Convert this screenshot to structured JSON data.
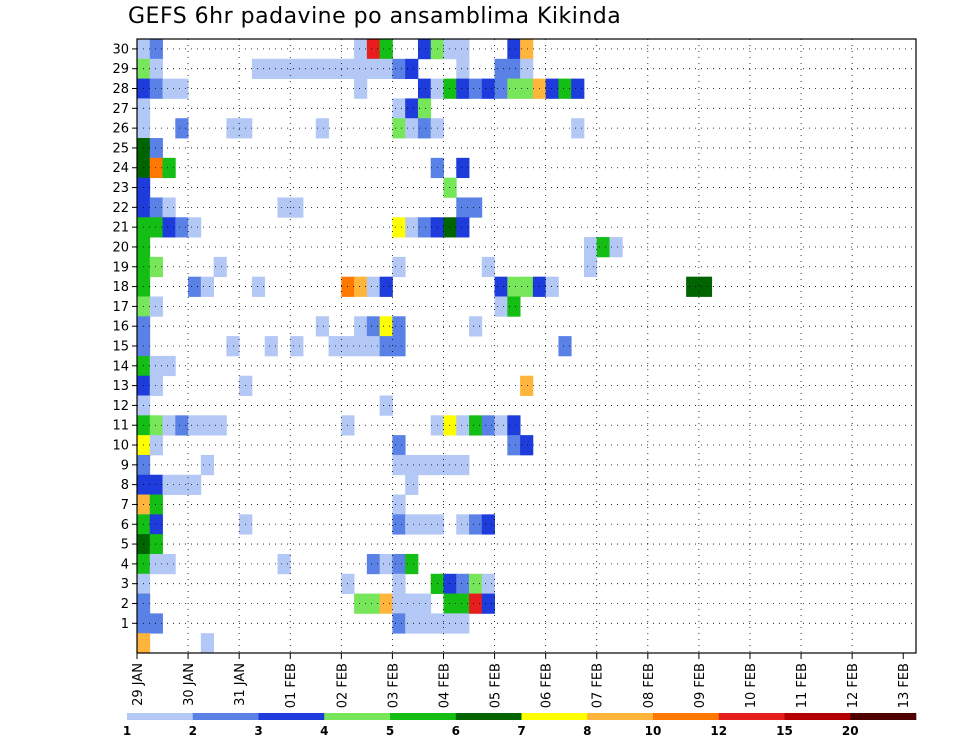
{
  "chart_data": {
    "type": "heatmap",
    "title": "GEFS 6hr padavine po ansamblima Kikinda",
    "xlabel": "",
    "ylabel": "",
    "y_members": [
      "1",
      "2",
      "3",
      "4",
      "5",
      "6",
      "7",
      "8",
      "9",
      "10",
      "11",
      "12",
      "13",
      "14",
      "15",
      "16",
      "17",
      "18",
      "19",
      "20",
      "21",
      "22",
      "23",
      "24",
      "25",
      "26",
      "27",
      "28",
      "29",
      "30"
    ],
    "x_dates": [
      "29 JAN",
      "30 JAN",
      "31 JAN",
      "01 FEB",
      "02 FEB",
      "03 FEB",
      "04 FEB",
      "05 FEB",
      "06 FEB",
      "07 FEB",
      "08 FEB",
      "09 FEB",
      "10 FEB",
      "11 FEB",
      "12 FEB",
      "13 FEB"
    ],
    "time_steps": 61,
    "steps_per_day": 4,
    "legend": {
      "labels": [
        "1",
        "2",
        "3",
        "4",
        "5",
        "6",
        "7",
        "8",
        "10",
        "12",
        "15",
        "20"
      ],
      "colors": [
        "#b4c8f5",
        "#5a82e6",
        "#1e3cdc",
        "#78e65a",
        "#14be14",
        "#006400",
        "#ffff00",
        "#ffb43c",
        "#ff7800",
        "#e61e1e",
        "#b40000",
        "#500000"
      ]
    },
    "cells": [
      [
        30,
        0,
        1
      ],
      [
        30,
        1,
        2
      ],
      [
        30,
        17,
        1
      ],
      [
        30,
        18,
        10
      ],
      [
        30,
        19,
        5
      ],
      [
        30,
        22,
        3
      ],
      [
        30,
        23,
        4
      ],
      [
        30,
        24,
        1
      ],
      [
        30,
        25,
        1
      ],
      [
        30,
        29,
        3
      ],
      [
        30,
        30,
        8
      ],
      [
        29,
        0,
        4
      ],
      [
        29,
        1,
        1
      ],
      [
        29,
        9,
        1
      ],
      [
        29,
        10,
        1
      ],
      [
        29,
        11,
        1
      ],
      [
        29,
        12,
        1
      ],
      [
        29,
        13,
        1
      ],
      [
        29,
        14,
        1
      ],
      [
        29,
        15,
        1
      ],
      [
        29,
        16,
        1
      ],
      [
        29,
        17,
        1
      ],
      [
        29,
        18,
        1
      ],
      [
        29,
        19,
        1
      ],
      [
        29,
        20,
        2
      ],
      [
        29,
        21,
        3
      ],
      [
        29,
        25,
        1
      ],
      [
        29,
        28,
        2
      ],
      [
        29,
        29,
        2
      ],
      [
        29,
        30,
        1
      ],
      [
        28,
        0,
        3
      ],
      [
        28,
        1,
        2
      ],
      [
        28,
        2,
        1
      ],
      [
        28,
        3,
        1
      ],
      [
        28,
        17,
        1
      ],
      [
        28,
        22,
        3
      ],
      [
        28,
        23,
        1
      ],
      [
        28,
        24,
        5
      ],
      [
        28,
        25,
        3
      ],
      [
        28,
        26,
        2
      ],
      [
        28,
        27,
        3
      ],
      [
        28,
        28,
        2
      ],
      [
        28,
        29,
        4
      ],
      [
        28,
        30,
        4
      ],
      [
        28,
        31,
        8
      ],
      [
        28,
        32,
        3
      ],
      [
        28,
        33,
        5
      ],
      [
        28,
        34,
        3
      ],
      [
        27,
        0,
        1
      ],
      [
        27,
        20,
        1
      ],
      [
        27,
        21,
        3
      ],
      [
        27,
        22,
        4
      ],
      [
        26,
        0,
        1
      ],
      [
        26,
        3,
        2
      ],
      [
        26,
        7,
        1
      ],
      [
        26,
        8,
        1
      ],
      [
        26,
        14,
        1
      ],
      [
        26,
        20,
        4
      ],
      [
        26,
        21,
        1
      ],
      [
        26,
        22,
        2
      ],
      [
        26,
        23,
        1
      ],
      [
        26,
        34,
        1
      ],
      [
        25,
        0,
        6
      ],
      [
        25,
        1,
        2
      ],
      [
        24,
        0,
        6
      ],
      [
        24,
        1,
        9
      ],
      [
        24,
        2,
        5
      ],
      [
        24,
        23,
        2
      ],
      [
        24,
        25,
        3
      ],
      [
        23,
        0,
        3
      ],
      [
        23,
        24,
        4
      ],
      [
        22,
        0,
        3
      ],
      [
        22,
        1,
        2
      ],
      [
        22,
        2,
        1
      ],
      [
        22,
        11,
        1
      ],
      [
        22,
        12,
        1
      ],
      [
        22,
        25,
        2
      ],
      [
        22,
        26,
        2
      ],
      [
        21,
        0,
        5
      ],
      [
        21,
        1,
        5
      ],
      [
        21,
        2,
        3
      ],
      [
        21,
        3,
        2
      ],
      [
        21,
        4,
        1
      ],
      [
        21,
        20,
        7
      ],
      [
        21,
        21,
        1
      ],
      [
        21,
        22,
        2
      ],
      [
        21,
        23,
        3
      ],
      [
        21,
        24,
        6
      ],
      [
        21,
        25,
        3
      ],
      [
        20,
        0,
        5
      ],
      [
        20,
        35,
        1
      ],
      [
        20,
        36,
        5
      ],
      [
        20,
        37,
        1
      ],
      [
        19,
        0,
        5
      ],
      [
        19,
        1,
        4
      ],
      [
        19,
        6,
        1
      ],
      [
        19,
        20,
        1
      ],
      [
        19,
        27,
        1
      ],
      [
        19,
        35,
        1
      ],
      [
        18,
        0,
        5
      ],
      [
        18,
        4,
        2
      ],
      [
        18,
        5,
        1
      ],
      [
        18,
        9,
        1
      ],
      [
        18,
        16,
        9
      ],
      [
        18,
        17,
        8
      ],
      [
        18,
        18,
        1
      ],
      [
        18,
        19,
        3
      ],
      [
        18,
        28,
        3
      ],
      [
        18,
        29,
        4
      ],
      [
        18,
        30,
        4
      ],
      [
        18,
        31,
        3
      ],
      [
        18,
        32,
        1
      ],
      [
        18,
        43,
        6
      ],
      [
        18,
        44,
        6
      ],
      [
        17,
        0,
        4
      ],
      [
        17,
        1,
        1
      ],
      [
        17,
        28,
        1
      ],
      [
        17,
        29,
        5
      ],
      [
        16,
        0,
        2
      ],
      [
        16,
        14,
        1
      ],
      [
        16,
        17,
        1
      ],
      [
        16,
        18,
        2
      ],
      [
        16,
        19,
        7
      ],
      [
        16,
        20,
        2
      ],
      [
        16,
        26,
        1
      ],
      [
        15,
        0,
        2
      ],
      [
        15,
        7,
        1
      ],
      [
        15,
        10,
        1
      ],
      [
        15,
        12,
        1
      ],
      [
        15,
        15,
        1
      ],
      [
        15,
        16,
        1
      ],
      [
        15,
        17,
        1
      ],
      [
        15,
        18,
        1
      ],
      [
        15,
        19,
        2
      ],
      [
        15,
        20,
        2
      ],
      [
        15,
        33,
        2
      ],
      [
        14,
        0,
        5
      ],
      [
        14,
        1,
        1
      ],
      [
        14,
        2,
        1
      ],
      [
        13,
        0,
        3
      ],
      [
        13,
        1,
        1
      ],
      [
        13,
        8,
        1
      ],
      [
        13,
        30,
        8
      ],
      [
        12,
        0,
        1
      ],
      [
        12,
        19,
        1
      ],
      [
        11,
        0,
        5
      ],
      [
        11,
        1,
        4
      ],
      [
        11,
        2,
        1
      ],
      [
        11,
        3,
        2
      ],
      [
        11,
        4,
        1
      ],
      [
        11,
        5,
        1
      ],
      [
        11,
        6,
        1
      ],
      [
        11,
        16,
        1
      ],
      [
        11,
        23,
        1
      ],
      [
        11,
        24,
        7
      ],
      [
        11,
        25,
        1
      ],
      [
        11,
        26,
        5
      ],
      [
        11,
        27,
        2
      ],
      [
        11,
        28,
        1
      ],
      [
        11,
        29,
        3
      ],
      [
        10,
        0,
        7
      ],
      [
        10,
        1,
        1
      ],
      [
        10,
        20,
        2
      ],
      [
        10,
        29,
        2
      ],
      [
        10,
        30,
        3
      ],
      [
        9,
        0,
        2
      ],
      [
        9,
        5,
        1
      ],
      [
        9,
        20,
        1
      ],
      [
        9,
        21,
        1
      ],
      [
        9,
        22,
        1
      ],
      [
        9,
        23,
        1
      ],
      [
        9,
        24,
        1
      ],
      [
        9,
        25,
        1
      ],
      [
        8,
        0,
        3
      ],
      [
        8,
        1,
        3
      ],
      [
        8,
        2,
        1
      ],
      [
        8,
        3,
        1
      ],
      [
        8,
        4,
        1
      ],
      [
        8,
        21,
        1
      ],
      [
        7,
        0,
        8
      ],
      [
        7,
        1,
        5
      ],
      [
        7,
        20,
        1
      ],
      [
        6,
        0,
        5
      ],
      [
        6,
        1,
        3
      ],
      [
        6,
        8,
        1
      ],
      [
        6,
        20,
        2
      ],
      [
        6,
        21,
        1
      ],
      [
        6,
        22,
        1
      ],
      [
        6,
        23,
        1
      ],
      [
        6,
        25,
        1
      ],
      [
        6,
        26,
        2
      ],
      [
        6,
        27,
        3
      ],
      [
        5,
        0,
        6
      ],
      [
        5,
        1,
        5
      ],
      [
        4,
        0,
        5
      ],
      [
        4,
        1,
        1
      ],
      [
        4,
        2,
        1
      ],
      [
        4,
        11,
        1
      ],
      [
        4,
        18,
        2
      ],
      [
        4,
        19,
        1
      ],
      [
        4,
        20,
        2
      ],
      [
        4,
        21,
        5
      ],
      [
        3,
        0,
        1
      ],
      [
        3,
        16,
        1
      ],
      [
        3,
        20,
        1
      ],
      [
        3,
        23,
        5
      ],
      [
        3,
        24,
        3
      ],
      [
        3,
        25,
        2
      ],
      [
        3,
        26,
        4
      ],
      [
        3,
        27,
        1
      ],
      [
        2,
        0,
        2
      ],
      [
        2,
        17,
        4
      ],
      [
        2,
        18,
        4
      ],
      [
        2,
        19,
        8
      ],
      [
        2,
        20,
        1
      ],
      [
        2,
        21,
        1
      ],
      [
        2,
        22,
        1
      ],
      [
        2,
        24,
        5
      ],
      [
        2,
        25,
        5
      ],
      [
        2,
        26,
        10
      ],
      [
        2,
        27,
        3
      ],
      [
        1,
        0,
        2
      ],
      [
        1,
        1,
        2
      ],
      [
        1,
        20,
        2
      ],
      [
        1,
        21,
        1
      ],
      [
        1,
        22,
        1
      ],
      [
        1,
        23,
        1
      ],
      [
        1,
        24,
        1
      ],
      [
        1,
        25,
        1
      ],
      [
        0,
        0,
        8
      ],
      [
        0,
        5,
        1
      ]
    ]
  }
}
